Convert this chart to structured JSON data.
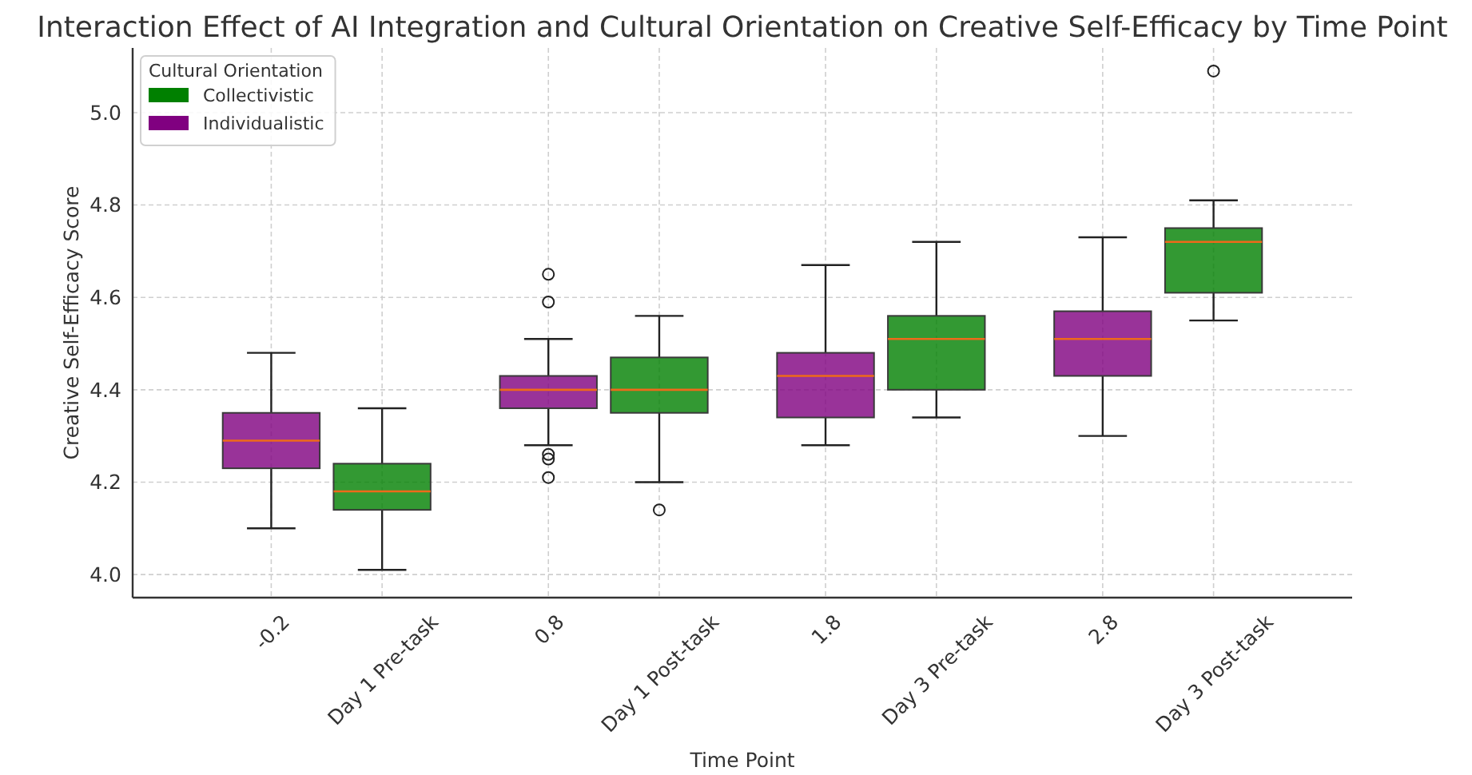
{
  "chart_data": {
    "type": "box",
    "title": "Interaction Effect of AI Integration and Cultural Orientation on Creative Self-Efficacy by Time Point",
    "xlabel": "Time Point",
    "ylabel": "Creative Self-Efficacy Score",
    "legend_title": "Cultural Orientation",
    "legend": "top left",
    "grid": true,
    "xlim": [
      -0.7,
      3.7
    ],
    "xticks": [
      -0.2,
      {
        "value": 0.2,
        "label": "Day 1 Pre-task"
      },
      0.8,
      {
        "value": 1.2,
        "label": "Day 1 Post-task"
      },
      1.8,
      {
        "value": 2.2,
        "label": "Day 3 Pre-task"
      },
      2.8,
      {
        "value": 3.2,
        "label": "Day 3 Post-task"
      }
    ],
    "ylim": [
      3.95,
      5.14
    ],
    "yticks": [
      {
        "value": 4,
        "label": "4.0"
      },
      4.2,
      4.4,
      4.6,
      4.8,
      {
        "value": 5,
        "label": "5.0"
      }
    ],
    "series": [
      {
        "name": "Collectivistic",
        "color": "#008000",
        "x": [
          0.2,
          1.2,
          2.2,
          3.2
        ],
        "boxes": [
          {
            "low": 4.01,
            "q1": 4.14,
            "median": 4.18,
            "q3": 4.24,
            "high": 4.36
          },
          {
            "low": 4.2,
            "q1": 4.35,
            "median": 4.4,
            "q3": 4.47,
            "high": 4.56,
            "outliers": [
              4.14
            ]
          },
          {
            "low": 4.34,
            "q1": 4.4,
            "median": 4.51,
            "q3": 4.56,
            "high": 4.72
          },
          {
            "low": 4.55,
            "q1": 4.61,
            "median": 4.72,
            "q3": 4.75,
            "high": 4.81,
            "outliers": [
              5.09
            ]
          }
        ]
      },
      {
        "name": "Individualistic",
        "color": "#800080",
        "x": [
          -0.2,
          0.8,
          1.8,
          2.8
        ],
        "boxes": [
          {
            "low": 4.1,
            "q1": 4.23,
            "median": 4.29,
            "q3": 4.35,
            "high": 4.48
          },
          {
            "low": 4.28,
            "q1": 4.36,
            "median": 4.4,
            "q3": 4.43,
            "high": 4.51,
            "outliers": [
              4.65,
              4.59,
              4.26,
              4.25,
              4.21
            ]
          },
          {
            "low": 4.28,
            "q1": 4.34,
            "median": 4.43,
            "q3": 4.48,
            "high": 4.67
          },
          {
            "low": 4.3,
            "q1": 4.43,
            "median": 4.51,
            "q3": 4.57,
            "high": 4.73
          }
        ]
      }
    ]
  }
}
